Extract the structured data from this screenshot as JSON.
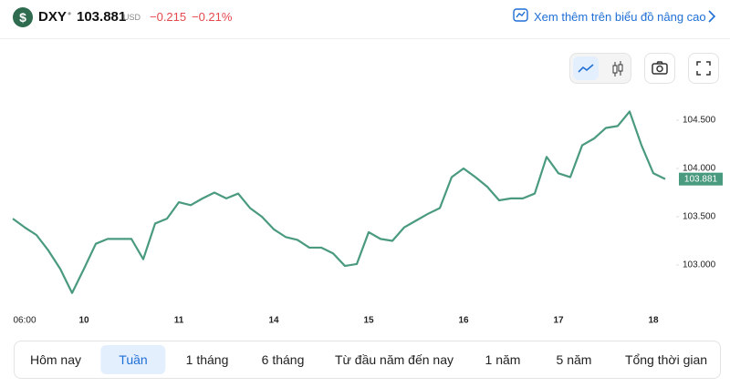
{
  "header": {
    "icon": "$",
    "symbol": "DXY",
    "price": "103.881",
    "currency": "USD",
    "change": "−0.215",
    "change_percent": "−0.21%",
    "advanced_link": "Xem thêm trên biểu đồ nâng cao"
  },
  "chart_data": {
    "type": "line",
    "categories": [
      null,
      "06:00",
      null,
      null,
      null,
      null,
      "10",
      null,
      null,
      null,
      null,
      null,
      null,
      null,
      "11",
      null,
      null,
      null,
      null,
      null,
      null,
      null,
      "14",
      null,
      null,
      null,
      null,
      null,
      null,
      null,
      "15",
      null,
      null,
      null,
      null,
      null,
      null,
      null,
      "16",
      null,
      null,
      null,
      null,
      null,
      null,
      null,
      "17",
      null,
      null,
      null,
      null,
      null,
      null,
      null,
      "18",
      null
    ],
    "series": [
      {
        "color": "#4a9a80",
        "values": [
          103.48,
          103.39,
          103.31,
          103.15,
          102.96,
          102.71,
          102.96,
          103.22,
          103.27,
          103.27,
          103.27,
          103.06,
          103.43,
          103.48,
          103.65,
          103.62,
          103.69,
          103.75,
          103.69,
          103.74,
          103.59,
          103.5,
          103.37,
          103.29,
          103.26,
          103.18,
          103.18,
          103.12,
          102.99,
          103.01,
          103.34,
          103.27,
          103.25,
          103.39,
          103.46,
          103.53,
          103.59,
          103.91,
          104.0,
          103.91,
          103.81,
          103.67,
          103.69,
          103.69,
          103.74,
          104.12,
          103.95,
          103.91,
          104.24,
          104.31,
          104.42,
          104.44,
          104.59,
          104.24,
          103.95,
          103.89
        ]
      }
    ],
    "ylim": [
      102.6,
      104.8
    ],
    "yticks": [
      {
        "value": 103.0,
        "label": "103.000"
      },
      {
        "value": 103.5,
        "label": "103.500"
      },
      {
        "value": 104.0,
        "label": "104.000"
      },
      {
        "value": 104.5,
        "label": "104.500"
      }
    ],
    "grid": false
  },
  "tabs": {
    "items": [
      "Hôm nay",
      "Tuần",
      "1 tháng",
      "6 tháng",
      "Từ đầu năm đến nay",
      "1 năm",
      "5 năm",
      "Tổng thời gian"
    ],
    "active": 1
  }
}
